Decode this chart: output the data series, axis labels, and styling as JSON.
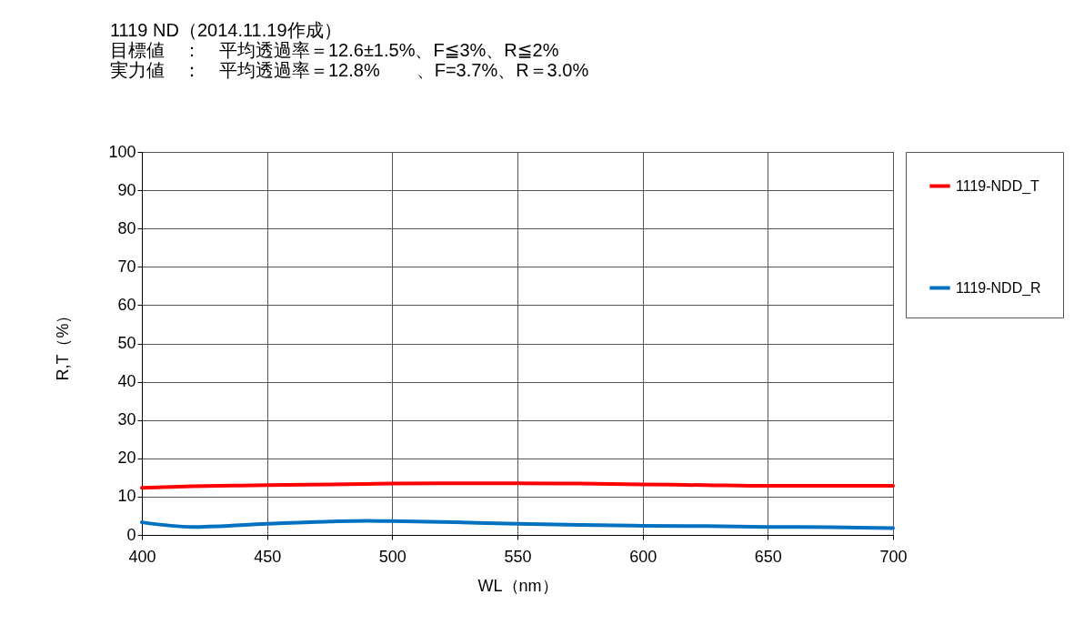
{
  "chart_data": {
    "type": "line",
    "title": "1119 ND（2014.11.19作成）",
    "annotations": [
      "目標値　：　平均透過率＝12.6±1.5%、F≦3%、R≦2%",
      "実力値　：　平均透過率＝12.8%　　、F=3.7%、R＝3.0%"
    ],
    "xlabel": "WL（nm）",
    "ylabel": "R,T（%）",
    "x": [
      400,
      420,
      450,
      475,
      490,
      500,
      525,
      550,
      575,
      600,
      625,
      650,
      675,
      700
    ],
    "series": [
      {
        "name": "1119-NDD_T",
        "color": "#ff0000",
        "values": [
          12.3,
          12.7,
          13.0,
          13.2,
          13.3,
          13.4,
          13.5,
          13.5,
          13.4,
          13.2,
          13.0,
          12.8,
          12.8,
          12.8
        ]
      },
      {
        "name": "1119-NDD_R",
        "color": "#0070c0",
        "values": [
          3.3,
          2.1,
          2.9,
          3.5,
          3.7,
          3.6,
          3.3,
          2.9,
          2.6,
          2.4,
          2.3,
          2.1,
          2.0,
          1.8
        ]
      }
    ],
    "xlim": [
      400,
      700
    ],
    "xticks": [
      400,
      450,
      500,
      550,
      600,
      650,
      700
    ],
    "ylim": [
      0,
      100
    ],
    "yticks": [
      0,
      10,
      20,
      30,
      40,
      50,
      60,
      70,
      80,
      90,
      100
    ],
    "grid": true,
    "legend": "right",
    "marker": "none",
    "line_style": "solid"
  }
}
